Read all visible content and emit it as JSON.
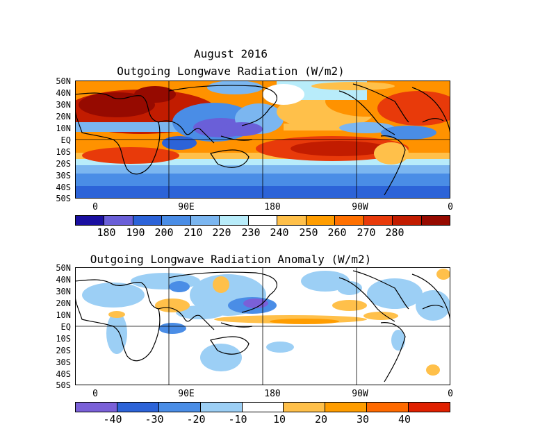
{
  "header": {
    "month_title": "August 2016"
  },
  "panel_top": {
    "title": "Outgoing Longwave Radiation (W/m2)",
    "lat_labels": [
      "50N",
      "40N",
      "30N",
      "20N",
      "10N",
      "EQ",
      "10S",
      "20S",
      "30S",
      "40S",
      "50S"
    ],
    "lon_labels": [
      "0",
      "90E",
      "180",
      "90W",
      "0"
    ],
    "colorbar": {
      "colors": [
        "#1a0fa0",
        "#6a5fd8",
        "#2c63d8",
        "#4a8de6",
        "#7bb6f0",
        "#b8ecfa",
        "#ffffff",
        "#ffc04a",
        "#ff9d00",
        "#ff7000",
        "#e83a0a",
        "#c21c00",
        "#960a00"
      ],
      "labels": [
        "180",
        "190",
        "200",
        "210",
        "220",
        "230",
        "240",
        "250",
        "260",
        "270",
        "280"
      ]
    }
  },
  "panel_bottom": {
    "title": "Outgoing Longwave Radiation Anomaly (W/m2)",
    "lat_labels": [
      "50N",
      "40N",
      "30N",
      "20N",
      "10N",
      "EQ",
      "10S",
      "20S",
      "30S",
      "40S",
      "50S"
    ],
    "lon_labels": [
      "0",
      "90E",
      "180",
      "90W",
      "0"
    ],
    "colorbar": {
      "colors": [
        "#7a60d8",
        "#2c63d8",
        "#4a8de6",
        "#9ccff5",
        "#ffffff",
        "#ffc04a",
        "#ff9d00",
        "#ff6a00",
        "#e02000"
      ],
      "labels": [
        "-40",
        "-30",
        "-20",
        "-10",
        "10",
        "20",
        "30",
        "40"
      ]
    }
  }
}
